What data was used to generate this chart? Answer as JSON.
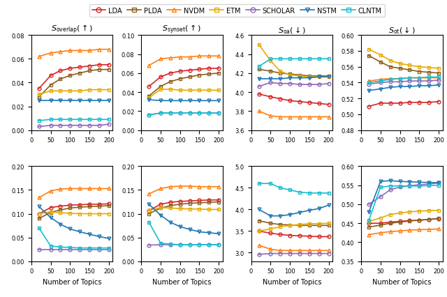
{
  "x": [
    20,
    50,
    75,
    100,
    125,
    150,
    175,
    200
  ],
  "models": [
    "LDA",
    "PLDA",
    "NVDM",
    "ETM",
    "SCHOLAR",
    "NSTM",
    "CLNTM"
  ],
  "colors": [
    "#d62728",
    "#8c5e1a",
    "#ff7f0e",
    "#e6ac00",
    "#9467bd",
    "#1f77b4",
    "#17becf"
  ],
  "markers": [
    "o",
    "s",
    "^",
    "s",
    "o",
    "v",
    "s"
  ],
  "legend_colors": [
    "#d62728",
    "#8c5e1a",
    "#ff7f0e",
    "#e6ac00",
    "#9467bd",
    "#1f77b4",
    "#17becf"
  ],
  "row0": {
    "S_overlap": {
      "title": "$S_{\\mathrm{overlap}}$($\\uparrow$)",
      "ylim": [
        0.0,
        0.08
      ],
      "yticks": [
        0.0,
        0.02,
        0.04,
        0.06,
        0.08
      ],
      "data": {
        "LDA": [
          0.035,
          0.046,
          0.05,
          0.052,
          0.053,
          0.054,
          0.055,
          0.055
        ],
        "PLDA": [
          0.028,
          0.038,
          0.043,
          0.046,
          0.048,
          0.05,
          0.051,
          0.051
        ],
        "NVDM": [
          0.062,
          0.065,
          0.066,
          0.067,
          0.067,
          0.067,
          0.068,
          0.068
        ],
        "ETM": [
          0.03,
          0.033,
          0.033,
          0.033,
          0.033,
          0.034,
          0.034,
          0.034
        ],
        "SCHOLAR": [
          0.003,
          0.004,
          0.004,
          0.004,
          0.004,
          0.004,
          0.004,
          0.005
        ],
        "NSTM": [
          0.025,
          0.025,
          0.025,
          0.025,
          0.025,
          0.025,
          0.025,
          0.025
        ],
        "CLNTM": [
          0.008,
          0.009,
          0.009,
          0.009,
          0.009,
          0.009,
          0.009,
          0.009
        ]
      }
    },
    "S_synset": {
      "title": "$S_{\\mathrm{synset}}$($\\uparrow$)",
      "ylim": [
        0.0,
        0.1
      ],
      "yticks": [
        0.0,
        0.02,
        0.04,
        0.06,
        0.08,
        0.1
      ],
      "data": {
        "LDA": [
          0.046,
          0.056,
          0.06,
          0.062,
          0.063,
          0.064,
          0.065,
          0.065
        ],
        "PLDA": [
          0.036,
          0.046,
          0.051,
          0.054,
          0.056,
          0.058,
          0.059,
          0.06
        ],
        "NVDM": [
          0.068,
          0.075,
          0.076,
          0.077,
          0.077,
          0.078,
          0.078,
          0.078
        ],
        "ETM": [
          0.034,
          0.043,
          0.043,
          0.042,
          0.042,
          0.042,
          0.042,
          0.042
        ],
        "SCHOLAR": [
          0.016,
          0.018,
          0.018,
          0.018,
          0.018,
          0.018,
          0.018,
          0.018
        ],
        "NSTM": [
          0.032,
          0.031,
          0.031,
          0.031,
          0.031,
          0.031,
          0.031,
          0.031
        ],
        "CLNTM": [
          0.016,
          0.018,
          0.018,
          0.018,
          0.018,
          0.018,
          0.018,
          0.018
        ]
      }
    },
    "S_oa": {
      "title": "$S_{\\mathrm{oa}}$($\\downarrow$)",
      "ylim": [
        3.6,
        4.6
      ],
      "yticks": [
        3.6,
        3.8,
        4.0,
        4.2,
        4.4,
        4.6
      ],
      "data": {
        "LDA": [
          3.98,
          3.95,
          3.93,
          3.91,
          3.9,
          3.89,
          3.88,
          3.87
        ],
        "PLDA": [
          4.24,
          4.22,
          4.2,
          4.19,
          4.18,
          4.17,
          4.17,
          4.17
        ],
        "NVDM": [
          3.8,
          3.75,
          3.74,
          3.74,
          3.74,
          3.74,
          3.74,
          3.74
        ],
        "ETM": [
          4.5,
          4.33,
          4.22,
          4.18,
          4.17,
          4.16,
          4.16,
          4.16
        ],
        "SCHOLAR": [
          4.06,
          4.1,
          4.09,
          4.09,
          4.08,
          4.08,
          4.08,
          4.09
        ],
        "NSTM": [
          4.14,
          4.14,
          4.14,
          4.15,
          4.15,
          4.15,
          4.16,
          4.16
        ],
        "CLNTM": [
          4.27,
          4.35,
          4.35,
          4.35,
          4.35,
          4.35,
          4.35,
          4.35
        ]
      }
    },
    "S_ot": {
      "title": "$S_{\\mathrm{ot}}$($\\downarrow$)",
      "ylim": [
        0.48,
        0.6
      ],
      "yticks": [
        0.48,
        0.5,
        0.52,
        0.54,
        0.56,
        0.58,
        0.6
      ],
      "data": {
        "LDA": [
          0.51,
          0.514,
          0.514,
          0.514,
          0.515,
          0.515,
          0.515,
          0.516
        ],
        "PLDA": [
          0.574,
          0.566,
          0.56,
          0.558,
          0.556,
          0.554,
          0.553,
          0.552
        ],
        "NVDM": [
          0.542,
          0.544,
          0.545,
          0.545,
          0.546,
          0.546,
          0.546,
          0.546
        ],
        "ETM": [
          0.582,
          0.575,
          0.568,
          0.564,
          0.562,
          0.56,
          0.559,
          0.558
        ],
        "SCHOLAR": [
          0.538,
          0.54,
          0.541,
          0.541,
          0.542,
          0.542,
          0.542,
          0.543
        ],
        "NSTM": [
          0.53,
          0.532,
          0.534,
          0.535,
          0.535,
          0.536,
          0.536,
          0.537
        ],
        "CLNTM": [
          0.54,
          0.542,
          0.544,
          0.545,
          0.546,
          0.546,
          0.547,
          0.547
        ]
      }
    }
  },
  "row1": {
    "S_overlap": {
      "title": "",
      "ylim": [
        0.0,
        0.2
      ],
      "yticks": [
        0.0,
        0.05,
        0.1,
        0.15,
        0.2
      ],
      "data": {
        "LDA": [
          0.1,
          0.113,
          0.116,
          0.118,
          0.119,
          0.12,
          0.12,
          0.121
        ],
        "PLDA": [
          0.09,
          0.103,
          0.108,
          0.112,
          0.114,
          0.115,
          0.116,
          0.117
        ],
        "NVDM": [
          0.134,
          0.148,
          0.152,
          0.153,
          0.153,
          0.153,
          0.153,
          0.153
        ],
        "ETM": [
          0.1,
          0.104,
          0.102,
          0.101,
          0.1,
          0.1,
          0.1,
          0.1
        ],
        "SCHOLAR": [
          0.025,
          0.025,
          0.025,
          0.025,
          0.025,
          0.025,
          0.025,
          0.025
        ],
        "NSTM": [
          0.115,
          0.092,
          0.078,
          0.068,
          0.062,
          0.057,
          0.052,
          0.048
        ],
        "CLNTM": [
          0.07,
          0.032,
          0.03,
          0.029,
          0.028,
          0.028,
          0.028,
          0.028
        ]
      }
    },
    "S_synset": {
      "title": "",
      "ylim": [
        0.0,
        0.2
      ],
      "yticks": [
        0.0,
        0.05,
        0.1,
        0.15,
        0.2
      ],
      "data": {
        "LDA": [
          0.107,
          0.12,
          0.124,
          0.126,
          0.127,
          0.128,
          0.129,
          0.129
        ],
        "PLDA": [
          0.1,
          0.112,
          0.117,
          0.12,
          0.122,
          0.123,
          0.124,
          0.125
        ],
        "NVDM": [
          0.142,
          0.153,
          0.157,
          0.158,
          0.158,
          0.157,
          0.157,
          0.157
        ],
        "ETM": [
          0.107,
          0.113,
          0.112,
          0.111,
          0.11,
          0.11,
          0.109,
          0.109
        ],
        "SCHOLAR": [
          0.034,
          0.035,
          0.035,
          0.035,
          0.035,
          0.035,
          0.035,
          0.035
        ],
        "NSTM": [
          0.12,
          0.097,
          0.082,
          0.073,
          0.067,
          0.062,
          0.06,
          0.058
        ],
        "CLNTM": [
          0.082,
          0.038,
          0.036,
          0.035,
          0.035,
          0.035,
          0.035,
          0.035
        ]
      }
    },
    "S_oa": {
      "title": "",
      "ylim": [
        2.8,
        5.0
      ],
      "yticks": [
        3.0,
        3.5,
        4.0,
        4.5,
        5.0
      ],
      "data": {
        "LDA": [
          3.5,
          3.45,
          3.42,
          3.4,
          3.39,
          3.38,
          3.37,
          3.37
        ],
        "PLDA": [
          3.74,
          3.68,
          3.65,
          3.64,
          3.63,
          3.63,
          3.63,
          3.63
        ],
        "NVDM": [
          3.17,
          3.08,
          3.05,
          3.05,
          3.05,
          3.05,
          3.05,
          3.05
        ],
        "ETM": [
          3.5,
          3.55,
          3.6,
          3.63,
          3.65,
          3.67,
          3.67,
          3.68
        ],
        "SCHOLAR": [
          2.96,
          2.98,
          2.98,
          2.98,
          2.98,
          2.98,
          2.98,
          2.98
        ],
        "NSTM": [
          4.0,
          3.85,
          3.85,
          3.88,
          3.93,
          3.98,
          4.02,
          4.1
        ],
        "CLNTM": [
          4.6,
          4.6,
          4.5,
          4.45,
          4.4,
          4.38,
          4.38,
          4.38
        ]
      }
    },
    "S_ot": {
      "title": "",
      "ylim": [
        0.35,
        0.6
      ],
      "yticks": [
        0.35,
        0.4,
        0.45,
        0.5,
        0.55,
        0.6
      ],
      "data": {
        "LDA": [
          0.45,
          0.45,
          0.453,
          0.455,
          0.457,
          0.458,
          0.46,
          0.462
        ],
        "PLDA": [
          0.44,
          0.445,
          0.45,
          0.453,
          0.456,
          0.458,
          0.46,
          0.463
        ],
        "NVDM": [
          0.42,
          0.425,
          0.428,
          0.43,
          0.432,
          0.433,
          0.434,
          0.435
        ],
        "ETM": [
          0.455,
          0.464,
          0.473,
          0.477,
          0.48,
          0.482,
          0.483,
          0.484
        ],
        "SCHOLAR": [
          0.5,
          0.52,
          0.538,
          0.545,
          0.549,
          0.551,
          0.553,
          0.556
        ],
        "NSTM": [
          0.48,
          0.56,
          0.562,
          0.56,
          0.559,
          0.558,
          0.557,
          0.557
        ],
        "CLNTM": [
          0.458,
          0.545,
          0.548,
          0.548,
          0.548,
          0.548,
          0.549,
          0.55
        ]
      }
    }
  },
  "subplot_titles_row0": [
    "$S_{\\mathrm{overlap}}$($\\uparrow$)",
    "$S_{\\mathrm{synset}}$($\\uparrow$)",
    "$S_{\\mathrm{oa}}$($\\downarrow$)",
    "$S_{\\mathrm{ot}}$($\\downarrow$)"
  ],
  "xlabel": "Number of Topics"
}
